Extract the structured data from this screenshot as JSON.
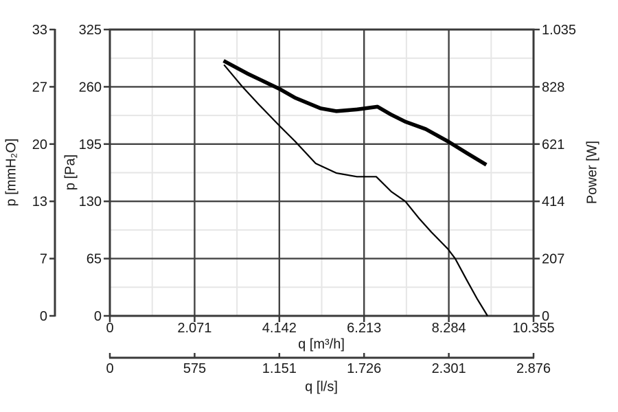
{
  "figure": {
    "background": "#ffffff",
    "text_color": "#1a1a1a",
    "axis_color": "#3a3a3a",
    "major_grid_color": "#434343",
    "minor_grid_color": "#e6e6e6",
    "curve_color": "#000000"
  },
  "chart_data": {
    "type": "line",
    "title": "",
    "grid": {
      "major": true,
      "minor": true,
      "divisions": 5
    },
    "x_axis_inner": {
      "label": "q [m³/h]",
      "tick_labels": [
        "0",
        "2.071",
        "4.142",
        "6.213",
        "8.284",
        "10.355"
      ],
      "min": 0,
      "max": 10355
    },
    "x_axis_outer": {
      "label": "q [l/s]",
      "tick_labels": [
        "0",
        "575",
        "1.151",
        "1.726",
        "2.301",
        "2.876"
      ],
      "min": 0,
      "max": 2876
    },
    "y_axis_outer_left": {
      "label": "p [mmH₂O]",
      "tick_labels": [
        "0",
        "7",
        "13",
        "20",
        "27",
        "33"
      ],
      "min": 0,
      "max": 33
    },
    "y_axis_inner_left": {
      "label": "p [Pa]",
      "tick_labels": [
        "0",
        "65",
        "130",
        "195",
        "260",
        "325"
      ],
      "min": 0,
      "max": 325
    },
    "y_axis_right": {
      "label": "Power [W]",
      "tick_labels": [
        "0",
        "207",
        "414",
        "621",
        "828",
        "1.035"
      ],
      "min": 0,
      "max": 1035
    },
    "series": [
      {
        "name": "pressure-curve",
        "style": "thin",
        "y_axis": "y_axis_inner_left",
        "points": [
          [
            2790,
            285
          ],
          [
            3240,
            260
          ],
          [
            3640,
            240
          ],
          [
            4160,
            215
          ],
          [
            4530,
            198
          ],
          [
            5030,
            173
          ],
          [
            5540,
            162
          ],
          [
            6040,
            158
          ],
          [
            6510,
            158
          ],
          [
            6880,
            141
          ],
          [
            7220,
            130
          ],
          [
            7550,
            111
          ],
          [
            7860,
            95
          ],
          [
            8260,
            76
          ],
          [
            8440,
            65
          ],
          [
            8730,
            40
          ],
          [
            8980,
            19
          ],
          [
            9230,
            0
          ]
        ]
      },
      {
        "name": "power-curve",
        "style": "thick",
        "y_axis": "y_axis_right",
        "points": [
          [
            2780,
            922
          ],
          [
            3360,
            876
          ],
          [
            4150,
            820
          ],
          [
            4530,
            788
          ],
          [
            5150,
            750
          ],
          [
            5540,
            740
          ],
          [
            6040,
            746
          ],
          [
            6540,
            756
          ],
          [
            6880,
            727
          ],
          [
            7220,
            702
          ],
          [
            7720,
            675
          ],
          [
            8270,
            630
          ],
          [
            8730,
            588
          ],
          [
            9200,
            546
          ]
        ]
      }
    ]
  }
}
